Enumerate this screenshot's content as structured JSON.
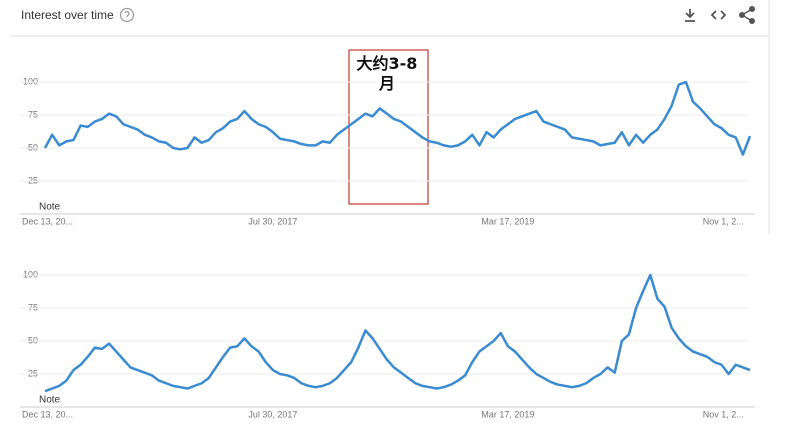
{
  "header": {
    "title": "Interest over time"
  },
  "chart_data": [
    {
      "type": "line",
      "color": "#3a8bd1",
      "grid": true,
      "note": "Note",
      "annotation": "大约3-8月",
      "ylim": [
        0,
        100
      ],
      "yticks": [
        25,
        50,
        75,
        100
      ],
      "xlim": [
        0,
        99
      ],
      "xticks": [
        {
          "value": 0,
          "label": "Dec 13, 20..."
        },
        {
          "value": 32,
          "label": "Jul 30, 2017"
        },
        {
          "value": 65,
          "label": "Mar 17, 2019"
        },
        {
          "value": 97,
          "label": "Nov 1, 2..."
        }
      ],
      "values": [
        50,
        60,
        52,
        55,
        56,
        67,
        66,
        70,
        72,
        76,
        74,
        68,
        66,
        64,
        60,
        58,
        55,
        54,
        50,
        49,
        50,
        58,
        54,
        56,
        62,
        65,
        70,
        72,
        78,
        72,
        68,
        66,
        62,
        57,
        56,
        55,
        53,
        52,
        52,
        55,
        54,
        60,
        64,
        68,
        72,
        76,
        74,
        80,
        76,
        72,
        70,
        66,
        62,
        58,
        55,
        54,
        52,
        51,
        52,
        55,
        60,
        52,
        62,
        58,
        64,
        68,
        72,
        74,
        76,
        78,
        70,
        68,
        66,
        64,
        58,
        57,
        56,
        55,
        52,
        53,
        54,
        62,
        52,
        60,
        54,
        60,
        64,
        72,
        82,
        98,
        100,
        85,
        80,
        74,
        68,
        65,
        60,
        58,
        45,
        59
      ]
    },
    {
      "type": "line",
      "color": "#3a8bd1",
      "grid": true,
      "note": "Note",
      "ylim": [
        0,
        100
      ],
      "yticks": [
        25,
        50,
        75,
        100
      ],
      "xlim": [
        0,
        99
      ],
      "xticks": [
        {
          "value": 0,
          "label": "Dec 13, 20..."
        },
        {
          "value": 32,
          "label": "Jul 30, 2017"
        },
        {
          "value": 65,
          "label": "Mar 17, 2019"
        },
        {
          "value": 97,
          "label": "Nov 1, 2..."
        }
      ],
      "values": [
        12,
        14,
        16,
        20,
        28,
        32,
        38,
        45,
        44,
        48,
        42,
        36,
        30,
        28,
        26,
        24,
        20,
        18,
        16,
        15,
        14,
        16,
        18,
        22,
        30,
        38,
        45,
        46,
        52,
        46,
        42,
        34,
        28,
        25,
        24,
        22,
        18,
        16,
        15,
        16,
        18,
        22,
        28,
        34,
        45,
        58,
        52,
        44,
        36,
        30,
        26,
        22,
        18,
        16,
        15,
        14,
        15,
        17,
        20,
        24,
        34,
        42,
        46,
        50,
        56,
        46,
        42,
        36,
        30,
        25,
        22,
        19,
        17,
        16,
        15,
        16,
        18,
        22,
        25,
        30,
        26,
        50,
        55,
        75,
        88,
        100,
        82,
        76,
        60,
        52,
        46,
        42,
        40,
        38,
        34,
        32,
        25,
        32,
        30,
        28
      ]
    }
  ]
}
